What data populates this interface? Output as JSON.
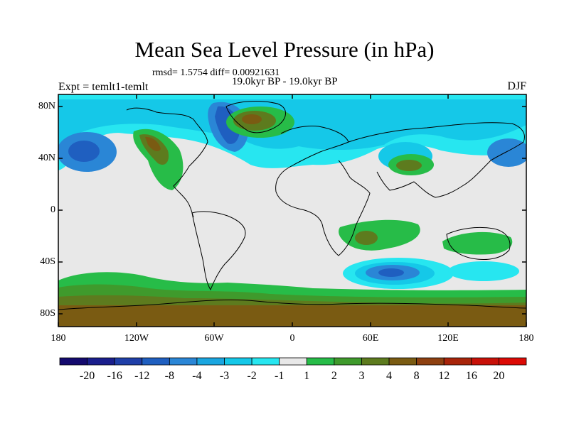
{
  "header": {
    "title": "Mean Sea Level Pressure (in hPa)",
    "stats": "rmsd= 1.5754  diff= 0.00921631",
    "period": "19.0kyr BP - 19.0kyr BP",
    "experiment": "Expt = temlt1-temlt",
    "season": "DJF"
  },
  "axes": {
    "lat_labels": [
      "80N",
      "40N",
      "0",
      "40S",
      "80S"
    ],
    "lon_labels": [
      "180",
      "120W",
      "60W",
      "0",
      "60E",
      "120E",
      "180"
    ]
  },
  "colorbar": {
    "labels": [
      "-20",
      "-16",
      "-12",
      "-8",
      "-4",
      "-3",
      "-2",
      "-1",
      "1",
      "2",
      "3",
      "4",
      "8",
      "12",
      "16",
      "20"
    ],
    "colors": [
      "#140a6e",
      "#1a1e8c",
      "#1f3fa8",
      "#1f5fc0",
      "#2a86d6",
      "#1aa6e0",
      "#15c8e8",
      "#27e6f0",
      "#e8e8e8",
      "#27bc48",
      "#3f9a2c",
      "#5d7b1e",
      "#7a5b12",
      "#8e4010",
      "#a8240a",
      "#c81008",
      "#dc0a05"
    ]
  },
  "chart_data": {
    "type": "heatmap",
    "title": "Mean Sea Level Pressure (in hPa)",
    "variable": "Mean Sea Level Pressure difference",
    "units": "hPa",
    "season": "DJF",
    "lon_range": [
      -180,
      180
    ],
    "lat_range": [
      -90,
      90
    ],
    "levels": [
      -20,
      -16,
      -12,
      -8,
      -4,
      -3,
      -2,
      -1,
      1,
      2,
      3,
      4,
      8,
      12,
      16,
      20
    ]
  }
}
